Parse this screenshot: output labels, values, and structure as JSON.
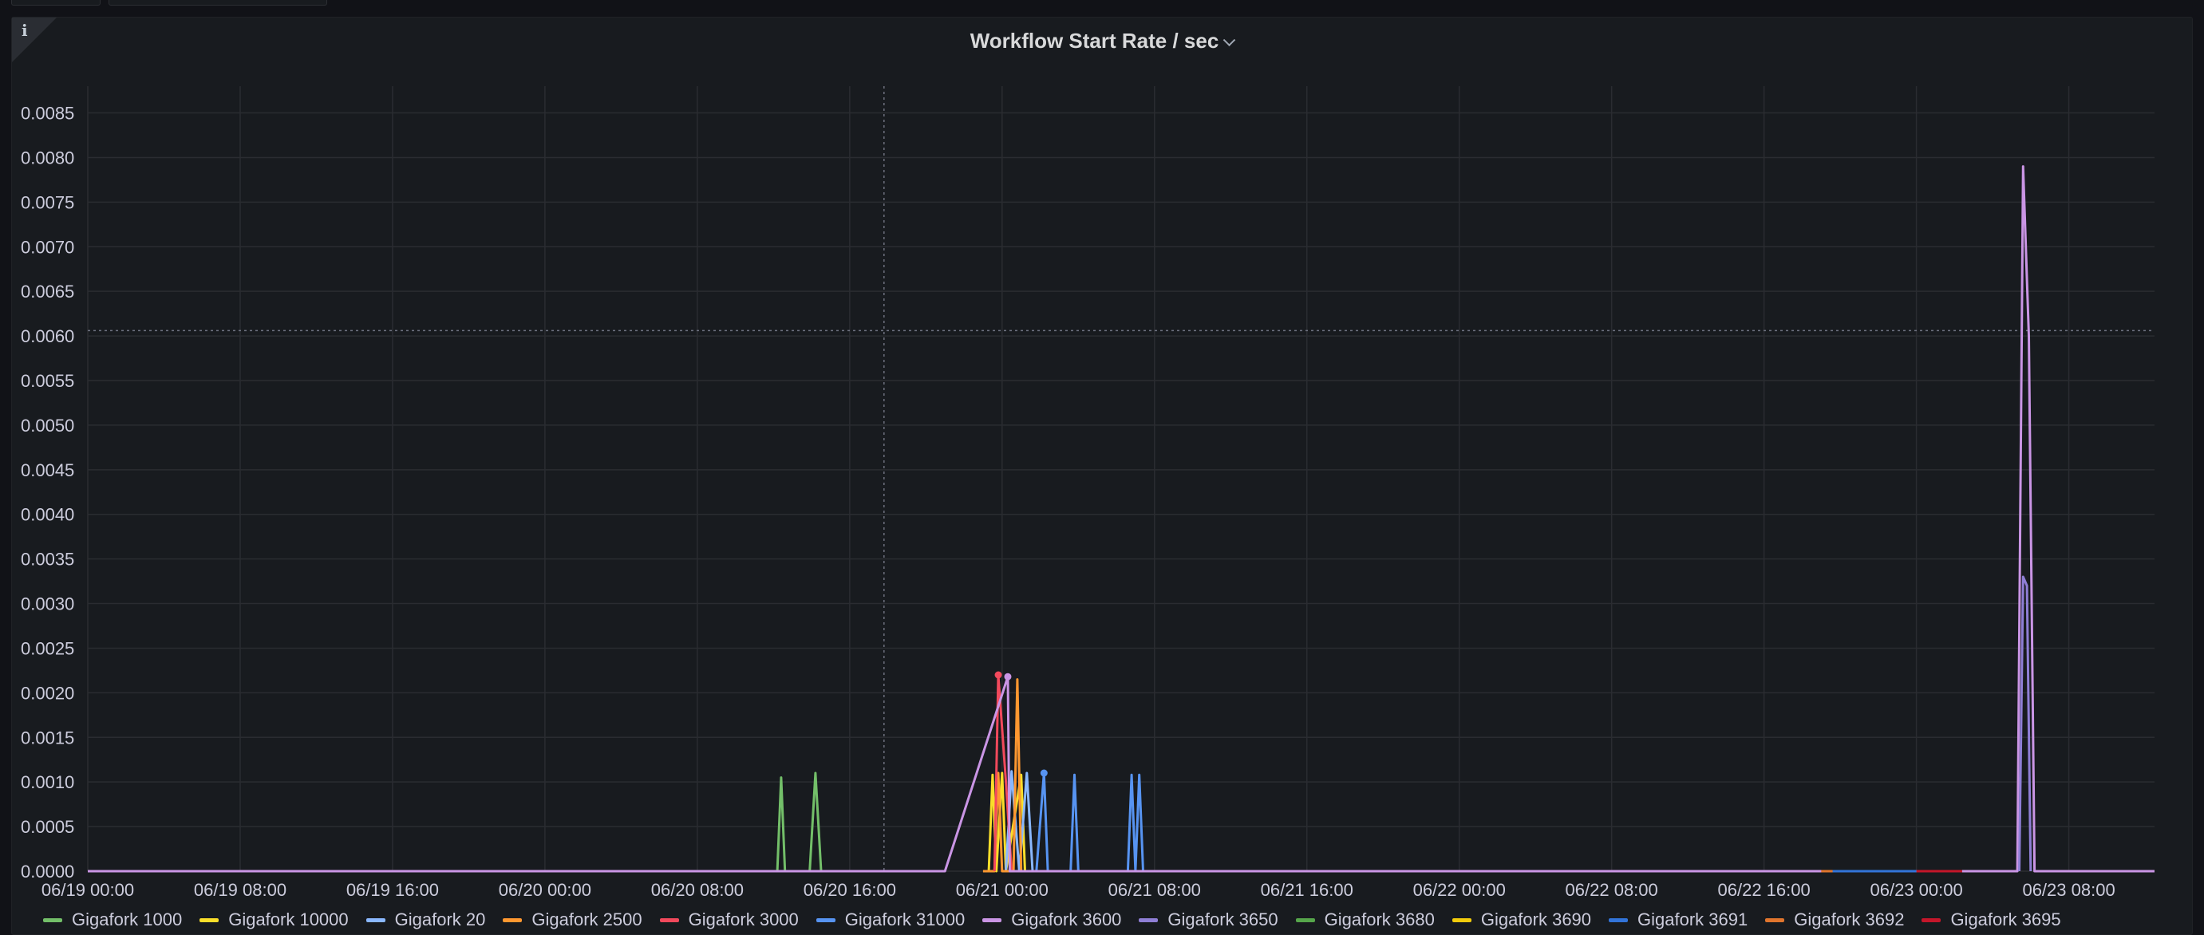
{
  "panel": {
    "title": "Workflow Start Rate / sec",
    "info_icon": "info-icon",
    "title_menu_icon": "chevron-down-icon"
  },
  "chart_data": {
    "type": "line",
    "title": "Workflow Start Rate / sec",
    "xlabel": "",
    "ylabel": "",
    "x_ticks": [
      "06/19 00:00",
      "06/19 08:00",
      "06/19 16:00",
      "06/20 00:00",
      "06/20 08:00",
      "06/20 16:00",
      "06/21 00:00",
      "06/21 08:00",
      "06/21 16:00",
      "06/22 00:00",
      "06/22 08:00",
      "06/22 16:00",
      "06/23 00:00",
      "06/23 08:00"
    ],
    "y_ticks": [
      "0.0000",
      "0.0005",
      "0.0010",
      "0.0015",
      "0.0020",
      "0.0025",
      "0.0030",
      "0.0035",
      "0.0040",
      "0.0045",
      "0.0050",
      "0.0055",
      "0.0060",
      "0.0065",
      "0.0070",
      "0.0075",
      "0.0080",
      "0.0085"
    ],
    "ylim": [
      0,
      0.0088
    ],
    "xlim_hours": [
      0,
      108.5
    ],
    "grid": true,
    "legend_position": "bottom",
    "crosshair": {
      "x_hours": 41.8,
      "y": 0.00606
    },
    "series": [
      {
        "name": "Gigafork 1000",
        "color": "#73bf69",
        "points": [
          [
            0,
            0
          ],
          [
            36.2,
            0
          ],
          [
            36.4,
            0.00105
          ],
          [
            36.6,
            0
          ],
          [
            37.9,
            0
          ],
          [
            38.2,
            0.0011
          ],
          [
            38.5,
            0
          ],
          [
            45,
            0
          ]
        ]
      },
      {
        "name": "Gigafork 10000",
        "color": "#fade2a",
        "points": [
          [
            47.3,
            0
          ],
          [
            47.5,
            0.00108
          ],
          [
            47.7,
            0
          ],
          [
            48.0,
            0.0011
          ],
          [
            48.2,
            0
          ],
          [
            49.0,
            0.00108
          ],
          [
            49.2,
            0
          ]
        ]
      },
      {
        "name": "Gigafork 20",
        "color": "#8ab8ff",
        "points": [
          [
            48.2,
            0
          ],
          [
            48.5,
            0.00112
          ],
          [
            48.9,
            0
          ],
          [
            49.3,
            0.0011
          ],
          [
            49.6,
            0
          ]
        ]
      },
      {
        "name": "Gigafork 2500",
        "color": "#ff9830",
        "points": [
          [
            47.0,
            0
          ],
          [
            47.6,
            0
          ],
          [
            47.8,
            0.0011
          ],
          [
            48.0,
            0
          ],
          [
            48.6,
            0
          ],
          [
            48.8,
            0.00215
          ],
          [
            49.0,
            0
          ]
        ]
      },
      {
        "name": "Gigafork 3000",
        "color": "#f2495c",
        "points": [
          [
            47.6,
            0
          ],
          [
            47.8,
            0.0022
          ],
          [
            48.2,
            0.001
          ],
          [
            48.5,
            0
          ]
        ]
      },
      {
        "name": "Gigafork 31000",
        "color": "#5794f2",
        "points": [
          [
            49.6,
            0
          ],
          [
            49.8,
            0
          ],
          [
            50.2,
            0.0011
          ],
          [
            50.4,
            0
          ],
          [
            51.6,
            0
          ],
          [
            51.8,
            0.00108
          ],
          [
            52.0,
            0
          ],
          [
            54.6,
            0
          ],
          [
            54.8,
            0.00108
          ],
          [
            55.0,
            0
          ],
          [
            55.2,
            0.00108
          ],
          [
            55.4,
            0
          ],
          [
            55.6,
            0
          ]
        ]
      },
      {
        "name": "Gigafork 3600",
        "color": "#ca95e5",
        "points": [
          [
            0,
            0
          ],
          [
            45,
            0
          ],
          [
            48.3,
            0.00218
          ],
          [
            48.4,
            0
          ],
          [
            101.3,
            0
          ],
          [
            101.6,
            0.0079
          ],
          [
            101.9,
            0.006
          ],
          [
            102.2,
            0
          ],
          [
            108.5,
            0
          ]
        ]
      },
      {
        "name": "Gigafork 3650",
        "color": "#8f7fd6",
        "points": [
          [
            101.4,
            0
          ],
          [
            101.6,
            0.0033
          ],
          [
            101.8,
            0.0032
          ],
          [
            102.0,
            0
          ]
        ]
      },
      {
        "name": "Gigafork 3680",
        "color": "#56a64b",
        "points": []
      },
      {
        "name": "Gigafork 3690",
        "color": "#f2cc0c",
        "points": []
      },
      {
        "name": "Gigafork 3691",
        "color": "#3274d9",
        "points": [
          [
            91.5,
            0
          ],
          [
            96.0,
            0
          ]
        ]
      },
      {
        "name": "Gigafork 3692",
        "color": "#e0752d",
        "points": [
          [
            91.0,
            0
          ],
          [
            91.6,
            0
          ]
        ]
      },
      {
        "name": "Gigafork 3695",
        "color": "#c4162a",
        "points": [
          [
            96.0,
            0
          ],
          [
            98.4,
            0
          ]
        ]
      }
    ]
  }
}
